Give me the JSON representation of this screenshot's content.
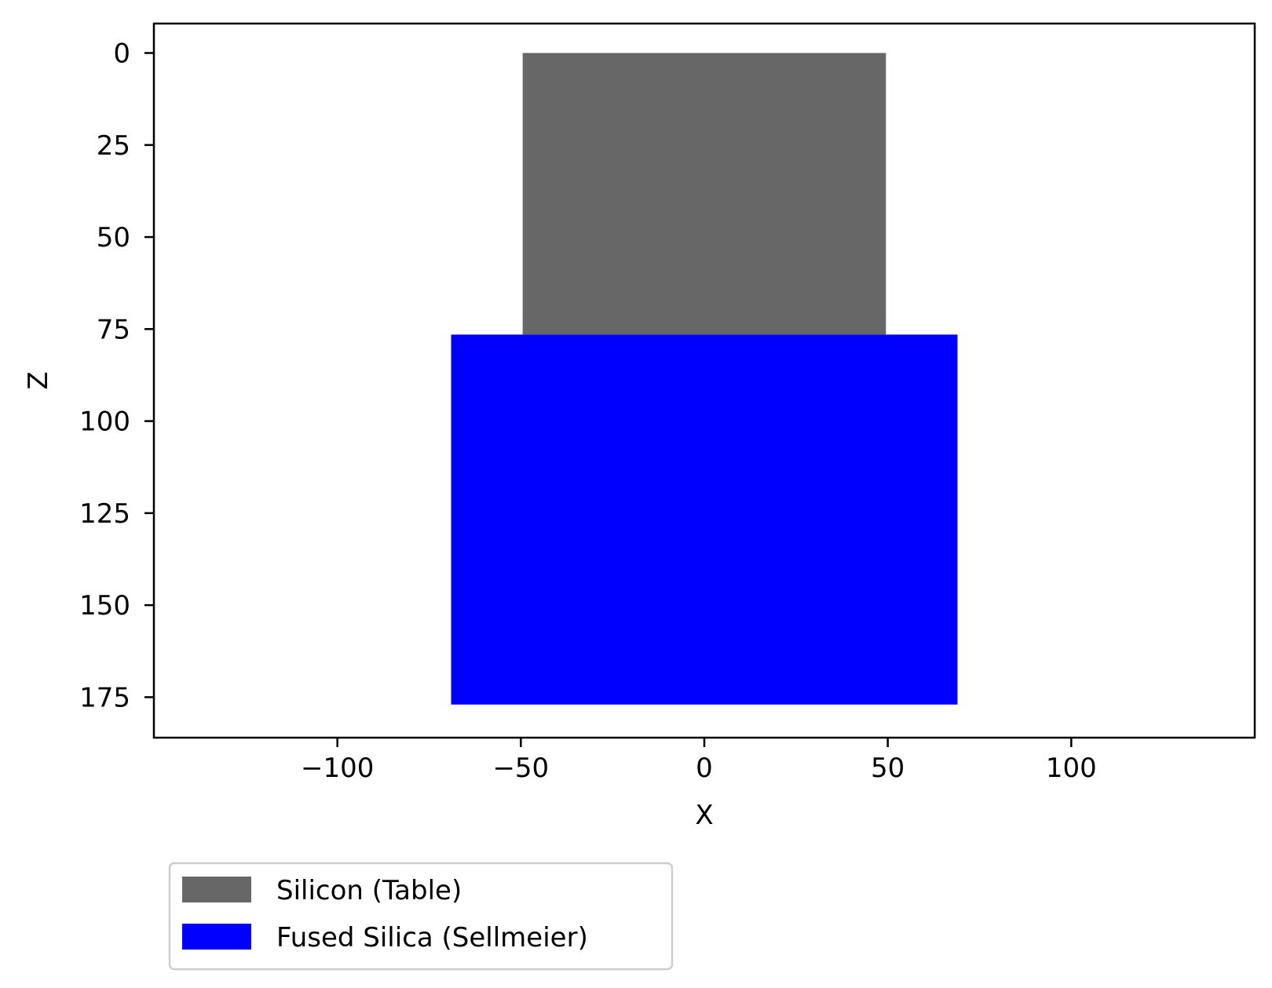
{
  "chart_data": {
    "type": "rectangles",
    "xlabel": "X",
    "ylabel": "Z",
    "xlim": [
      -150,
      150
    ],
    "ylim": [
      186,
      -8
    ],
    "y_inverted": true,
    "xticks": [
      -100,
      -50,
      0,
      50,
      100
    ],
    "xtick_labels": [
      "−100",
      "−50",
      "0",
      "50",
      "100"
    ],
    "yticks": [
      0,
      25,
      50,
      75,
      100,
      125,
      150,
      175
    ],
    "ytick_labels": [
      "0",
      "25",
      "50",
      "75",
      "100",
      "125",
      "150",
      "175"
    ],
    "grid": false,
    "legend_position": "below-left",
    "series": [
      {
        "name": "Silicon (Table)",
        "color": "#676767",
        "x": [
          -49.5,
          49.5
        ],
        "z": [
          0,
          76.5
        ]
      },
      {
        "name": "Fused Silica (Sellmeier)",
        "color": "#0000ff",
        "x": [
          -69,
          69
        ],
        "z": [
          76.5,
          177
        ]
      }
    ]
  }
}
